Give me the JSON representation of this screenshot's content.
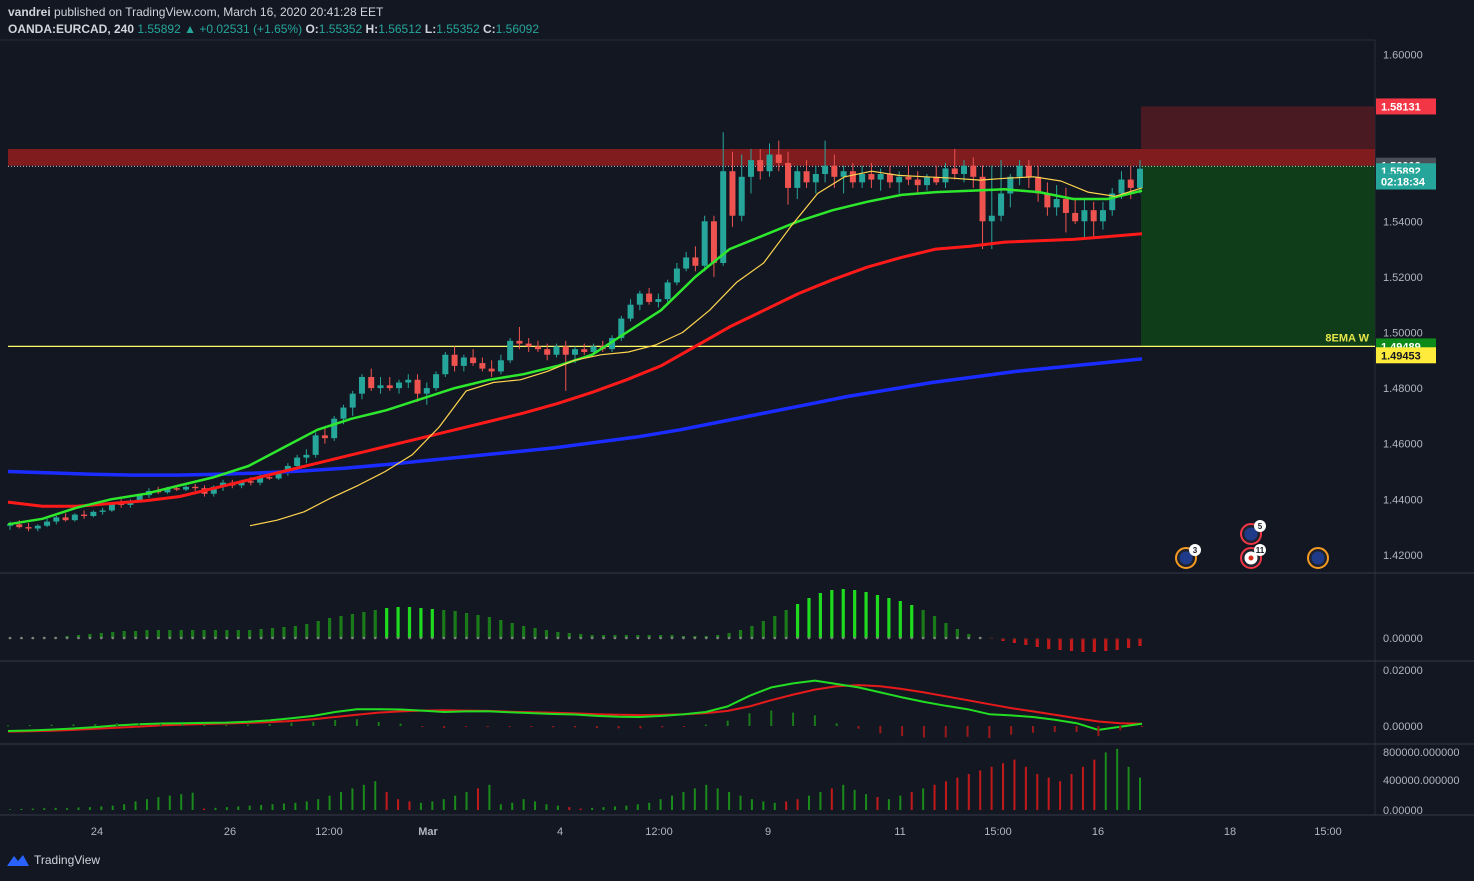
{
  "header": {
    "author": "vandrei",
    "published": "published on TradingView.com, March 16, 2020 20:41:28 EET",
    "symbol": "OANDA:EURCAD, 240",
    "last": "1.55892",
    "change_arrow": "▲",
    "change": "+0.02531 (+1.65%)",
    "o_label": "O:",
    "o": "1.55352",
    "h_label": "H:",
    "h": "1.56512",
    "l_label": "L:",
    "l": "1.55352",
    "c_label": "C:",
    "c": "1.56092"
  },
  "footer": {
    "brand": "TradingView",
    "icon": "tradingview-logo-icon"
  },
  "colors": {
    "background": "#131722",
    "up": "#26a69a",
    "down": "#ef5350",
    "ema_fast": "#ffd54f",
    "ema_mid": "#2ee82e",
    "ema_slow": "#ff1a1a",
    "ema_long": "#1a2cff",
    "level_line": "#ffff66",
    "resistance_zone": "#a51d1d",
    "stop_zone": "#4a1a22",
    "target_zone": "#0f3d1a"
  },
  "chart_data": {
    "type": "candlestick",
    "price_axis": {
      "ylim": [
        1.4135,
        1.6052
      ],
      "ticks": [
        "1.60000",
        "1.58000",
        "1.56000",
        "1.54000",
        "1.52000",
        "1.50000",
        "1.48000",
        "1.46000",
        "1.44000",
        "1.42000"
      ]
    },
    "time_axis": {
      "ticks": [
        "24",
        "26",
        "12:00",
        "Mar",
        "4",
        "12:00",
        "9",
        "11",
        "15:00",
        "16",
        "18",
        "15:00"
      ]
    },
    "price_labels": [
      {
        "text": "1.58131",
        "color": "#f23645"
      },
      {
        "text": "1.56002",
        "color": "#4a4e57"
      },
      {
        "text": "1.55892",
        "color": "#26a69a"
      },
      {
        "text": "02:18:34",
        "color": "#26a69a"
      },
      {
        "text": "1.49489",
        "color": "#0d8a1a"
      },
      {
        "text": "1.49453",
        "color": "#ffeb3b"
      }
    ],
    "annotations": [
      {
        "text": "8EMA W",
        "value": 1.495
      }
    ],
    "levels": {
      "horizontal_line": 1.495,
      "resistance_zone": [
        1.56,
        1.566
      ],
      "stop_zone": [
        1.566,
        1.5813
      ],
      "target_zone": [
        1.495,
        1.56
      ]
    },
    "candles": [
      [
        1.4305,
        1.432,
        1.429,
        1.431
      ],
      [
        1.431,
        1.4325,
        1.4295,
        1.43
      ],
      [
        1.43,
        1.4315,
        1.4285,
        1.4295
      ],
      [
        1.4295,
        1.431,
        1.4285,
        1.4305
      ],
      [
        1.4305,
        1.433,
        1.43,
        1.432
      ],
      [
        1.432,
        1.434,
        1.431,
        1.4335
      ],
      [
        1.4335,
        1.435,
        1.432,
        1.4325
      ],
      [
        1.4325,
        1.435,
        1.432,
        1.4345
      ],
      [
        1.4345,
        1.436,
        1.433,
        1.434
      ],
      [
        1.434,
        1.436,
        1.4335,
        1.4355
      ],
      [
        1.4355,
        1.437,
        1.4345,
        1.436
      ],
      [
        1.436,
        1.439,
        1.4355,
        1.4385
      ],
      [
        1.4385,
        1.44,
        1.437,
        1.438
      ],
      [
        1.438,
        1.44,
        1.437,
        1.4395
      ],
      [
        1.4395,
        1.442,
        1.439,
        1.4415
      ],
      [
        1.4415,
        1.444,
        1.4405,
        1.443
      ],
      [
        1.443,
        1.4445,
        1.442,
        1.4425
      ],
      [
        1.4425,
        1.4445,
        1.442,
        1.444
      ],
      [
        1.444,
        1.445,
        1.443,
        1.4435
      ],
      [
        1.4435,
        1.445,
        1.443,
        1.4445
      ],
      [
        1.4445,
        1.4455,
        1.443,
        1.444
      ],
      [
        1.444,
        1.445,
        1.441,
        1.442
      ],
      [
        1.442,
        1.445,
        1.441,
        1.4445
      ],
      [
        1.4445,
        1.447,
        1.443,
        1.446
      ],
      [
        1.446,
        1.447,
        1.444,
        1.445
      ],
      [
        1.445,
        1.447,
        1.444,
        1.4465
      ],
      [
        1.4465,
        1.448,
        1.445,
        1.446
      ],
      [
        1.446,
        1.449,
        1.445,
        1.448
      ],
      [
        1.448,
        1.45,
        1.447,
        1.4475
      ],
      [
        1.4475,
        1.45,
        1.447,
        1.4495
      ],
      [
        1.4495,
        1.453,
        1.4485,
        1.452
      ],
      [
        1.452,
        1.456,
        1.45,
        1.455
      ],
      [
        1.455,
        1.458,
        1.453,
        1.456
      ],
      [
        1.456,
        1.464,
        1.455,
        1.463
      ],
      [
        1.463,
        1.466,
        1.46,
        1.462
      ],
      [
        1.462,
        1.47,
        1.461,
        1.469
      ],
      [
        1.469,
        1.474,
        1.467,
        1.473
      ],
      [
        1.473,
        1.479,
        1.47,
        1.478
      ],
      [
        1.478,
        1.485,
        1.476,
        1.484
      ],
      [
        1.484,
        1.487,
        1.479,
        1.48
      ],
      [
        1.48,
        1.484,
        1.478,
        1.481
      ],
      [
        1.481,
        1.484,
        1.479,
        1.48
      ],
      [
        1.48,
        1.483,
        1.478,
        1.482
      ],
      [
        1.482,
        1.485,
        1.48,
        1.483
      ],
      [
        1.483,
        1.485,
        1.475,
        1.478
      ],
      [
        1.478,
        1.482,
        1.474,
        1.48
      ],
      [
        1.48,
        1.486,
        1.479,
        1.485
      ],
      [
        1.485,
        1.493,
        1.484,
        1.492
      ],
      [
        1.492,
        1.495,
        1.486,
        1.488
      ],
      [
        1.488,
        1.492,
        1.486,
        1.491
      ],
      [
        1.491,
        1.494,
        1.488,
        1.489
      ],
      [
        1.489,
        1.491,
        1.486,
        1.487
      ],
      [
        1.487,
        1.49,
        1.484,
        1.486
      ],
      [
        1.486,
        1.492,
        1.485,
        1.49
      ],
      [
        1.49,
        1.498,
        1.489,
        1.497
      ],
      [
        1.497,
        1.502,
        1.494,
        1.496
      ],
      [
        1.496,
        1.498,
        1.493,
        1.495
      ],
      [
        1.495,
        1.497,
        1.493,
        1.494
      ],
      [
        1.494,
        1.496,
        1.49,
        1.492
      ],
      [
        1.492,
        1.496,
        1.491,
        1.495
      ],
      [
        1.495,
        1.497,
        1.479,
        1.492
      ],
      [
        1.492,
        1.495,
        1.489,
        1.494
      ],
      [
        1.494,
        1.496,
        1.492,
        1.493
      ],
      [
        1.493,
        1.496,
        1.492,
        1.495
      ],
      [
        1.495,
        1.497,
        1.493,
        1.494
      ],
      [
        1.494,
        1.499,
        1.493,
        1.498
      ],
      [
        1.498,
        1.506,
        1.497,
        1.505
      ],
      [
        1.505,
        1.512,
        1.504,
        1.51
      ],
      [
        1.51,
        1.515,
        1.508,
        1.514
      ],
      [
        1.514,
        1.516,
        1.51,
        1.511
      ],
      [
        1.511,
        1.514,
        1.509,
        1.512
      ],
      [
        1.512,
        1.519,
        1.511,
        1.518
      ],
      [
        1.518,
        1.525,
        1.517,
        1.523
      ],
      [
        1.523,
        1.529,
        1.522,
        1.527
      ],
      [
        1.527,
        1.531,
        1.522,
        1.524
      ],
      [
        1.524,
        1.542,
        1.522,
        1.54
      ],
      [
        1.54,
        1.542,
        1.52,
        1.525
      ],
      [
        1.525,
        1.572,
        1.524,
        1.558
      ],
      [
        1.558,
        1.565,
        1.538,
        1.542
      ],
      [
        1.542,
        1.564,
        1.54,
        1.556
      ],
      [
        1.556,
        1.566,
        1.55,
        1.562
      ],
      [
        1.562,
        1.566,
        1.555,
        1.558
      ],
      [
        1.558,
        1.568,
        1.556,
        1.564
      ],
      [
        1.564,
        1.569,
        1.558,
        1.561
      ],
      [
        1.561,
        1.565,
        1.546,
        1.552
      ],
      [
        1.552,
        1.56,
        1.548,
        1.558
      ],
      [
        1.558,
        1.562,
        1.552,
        1.554
      ],
      [
        1.554,
        1.56,
        1.55,
        1.557
      ],
      [
        1.557,
        1.569,
        1.554,
        1.56
      ],
      [
        1.56,
        1.564,
        1.552,
        1.556
      ],
      [
        1.556,
        1.56,
        1.55,
        1.558
      ],
      [
        1.558,
        1.561,
        1.552,
        1.554
      ],
      [
        1.554,
        1.56,
        1.552,
        1.557
      ],
      [
        1.557,
        1.561,
        1.552,
        1.555
      ],
      [
        1.555,
        1.559,
        1.551,
        1.557
      ],
      [
        1.557,
        1.56,
        1.552,
        1.554
      ],
      [
        1.554,
        1.558,
        1.55,
        1.556
      ],
      [
        1.556,
        1.56,
        1.553,
        1.555
      ],
      [
        1.555,
        1.558,
        1.55,
        1.553
      ],
      [
        1.553,
        1.557,
        1.551,
        1.556
      ],
      [
        1.556,
        1.56,
        1.553,
        1.554
      ],
      [
        1.554,
        1.561,
        1.552,
        1.559
      ],
      [
        1.559,
        1.566,
        1.555,
        1.557
      ],
      [
        1.557,
        1.562,
        1.554,
        1.56
      ],
      [
        1.56,
        1.563,
        1.552,
        1.556
      ],
      [
        1.556,
        1.56,
        1.53,
        1.54
      ],
      [
        1.54,
        1.56,
        1.53,
        1.542
      ],
      [
        1.542,
        1.562,
        1.54,
        1.55
      ],
      [
        1.55,
        1.557,
        1.545,
        1.556
      ],
      [
        1.556,
        1.562,
        1.553,
        1.56
      ],
      [
        1.56,
        1.562,
        1.552,
        1.556
      ],
      [
        1.556,
        1.56,
        1.547,
        1.55
      ],
      [
        1.55,
        1.554,
        1.542,
        1.545
      ],
      [
        1.545,
        1.553,
        1.542,
        1.548
      ],
      [
        1.548,
        1.552,
        1.536,
        1.543
      ],
      [
        1.543,
        1.548,
        1.539,
        1.54
      ],
      [
        1.54,
        1.548,
        1.534,
        1.544
      ],
      [
        1.544,
        1.547,
        1.534,
        1.54
      ],
      [
        1.54,
        1.547,
        1.537,
        1.544
      ],
      [
        1.544,
        1.552,
        1.542,
        1.55
      ],
      [
        1.55,
        1.558,
        1.548,
        1.555
      ],
      [
        1.555,
        1.56,
        1.548,
        1.552
      ],
      [
        1.552,
        1.562,
        1.55,
        1.5589
      ]
    ],
    "ema_fast": [
      [
        1.4305,
        1.4325,
        1.4355,
        1.4405,
        1.445,
        1.45,
        1.456,
        1.466,
        1.479,
        1.482,
        1.483,
        1.486,
        1.49,
        1.492,
        1.493,
        1.4955,
        1.5,
        1.508,
        1.518,
        1.525,
        1.538,
        1.55,
        1.556,
        1.558,
        1.5565,
        1.556,
        1.5555,
        1.5548,
        1.5555,
        1.556,
        1.5545,
        1.5505,
        1.549,
        1.552
      ]
    ],
    "ema_20": [
      [
        1.431,
        1.433,
        1.437,
        1.44,
        1.442,
        1.445,
        1.448,
        1.452,
        1.4585,
        1.465,
        1.469,
        1.472,
        1.476,
        1.48,
        1.483,
        1.485,
        1.488,
        1.492,
        1.5,
        1.508,
        1.52,
        1.53,
        1.535,
        1.54,
        1.544,
        1.547,
        1.5495,
        1.5505,
        1.551,
        1.5515,
        1.5505,
        1.548,
        1.548,
        1.551
      ]
    ],
    "ema_50": [
      [
        1.439,
        1.4375,
        1.4375,
        1.4385,
        1.4395,
        1.441,
        1.444,
        1.447,
        1.45,
        1.453,
        1.456,
        1.459,
        1.462,
        1.465,
        1.468,
        1.471,
        1.4745,
        1.4785,
        1.483,
        1.488,
        1.495,
        1.502,
        1.508,
        1.514,
        1.519,
        1.5235,
        1.527,
        1.53,
        1.531,
        1.5325,
        1.533,
        1.5335,
        1.5345,
        1.5355
      ]
    ],
    "ema_200": [
      [
        1.45,
        1.4495,
        1.449,
        1.4487,
        1.4487,
        1.449,
        1.4495,
        1.4502,
        1.4512,
        1.4525,
        1.454,
        1.4555,
        1.457,
        1.4585,
        1.4605,
        1.4625,
        1.465,
        1.468,
        1.471,
        1.474,
        1.477,
        1.4795,
        1.482,
        1.484,
        1.486,
        1.4875,
        1.489,
        1.4905
      ]
    ],
    "momentum_pane": {
      "axis_tick": "0.00000",
      "bars": [
        0,
        0,
        0,
        1,
        1,
        2,
        3,
        4,
        5,
        6,
        7,
        7,
        8,
        8,
        8,
        8,
        8,
        8,
        8,
        8,
        8,
        8,
        9,
        10,
        11,
        12,
        14,
        17,
        20,
        22,
        24,
        26,
        28,
        30,
        31,
        31,
        30,
        29,
        28,
        27,
        25,
        23,
        21,
        18,
        15,
        12,
        10,
        8,
        6,
        5,
        4,
        3,
        3,
        3,
        3,
        3,
        3,
        3,
        3,
        2,
        2,
        2,
        3,
        5,
        8,
        12,
        17,
        22,
        28,
        34,
        40,
        45,
        48,
        49,
        48,
        46,
        43,
        40,
        37,
        33,
        28,
        22,
        15,
        9,
        4,
        1,
        -1,
        -3,
        -5,
        -7,
        -9,
        -11,
        -12,
        -13,
        -14,
        -14,
        -13,
        -12,
        -10,
        -8
      ]
    },
    "macd_pane": {
      "axis_ticks": [
        "0.02000",
        "0.00000"
      ],
      "macd": [
        -0.0018,
        -0.0016,
        -0.0013,
        -0.0009,
        -0.0004,
        0.0002,
        0.0006,
        0.0009,
        0.001,
        0.0011,
        0.0012,
        0.0015,
        0.002,
        0.0028,
        0.0036,
        0.005,
        0.006,
        0.006,
        0.0059,
        0.0055,
        0.005,
        0.0052,
        0.0053,
        0.0049,
        0.0046,
        0.0043,
        0.0041,
        0.0036,
        0.0033,
        0.0032,
        0.0036,
        0.0042,
        0.005,
        0.007,
        0.0108,
        0.0138,
        0.0152,
        0.0162,
        0.015,
        0.0138,
        0.012,
        0.0102,
        0.0086,
        0.0072,
        0.006,
        0.0042,
        0.0038,
        0.0032,
        0.0022,
        0.001,
        -0.0014,
        -0.0003,
        0.0008
      ],
      "signal": [
        -0.002,
        -0.0019,
        -0.0017,
        -0.0014,
        -0.001,
        -0.0006,
        -0.0002,
        0.0002,
        0.0005,
        0.0007,
        0.0009,
        0.0011,
        0.0014,
        0.0018,
        0.0024,
        0.0032,
        0.004,
        0.0048,
        0.0052,
        0.0055,
        0.0056,
        0.0055,
        0.0054,
        0.0051,
        0.0049,
        0.0047,
        0.0045,
        0.0042,
        0.004,
        0.0039,
        0.004,
        0.0042,
        0.0046,
        0.0054,
        0.007,
        0.0092,
        0.0112,
        0.013,
        0.0142,
        0.0146,
        0.0142,
        0.0132,
        0.012,
        0.0106,
        0.0092,
        0.0078,
        0.0064,
        0.0052,
        0.004,
        0.0028,
        0.0016,
        0.001,
        0.0008
      ]
    },
    "volume_pane": {
      "axis_ticks": [
        "800000.000000",
        "400000.000000",
        "0.00000"
      ],
      "volume_color_codes": "gggggggggggggggggrgggggggggggggggrrrgggggrgggggggrrgggggggggggggggggrrggrgggrggrgrrrrrrrrrrrrrrrgggg",
      "volume": [
        10,
        15,
        20,
        25,
        30,
        25,
        35,
        40,
        50,
        60,
        80,
        120,
        150,
        180,
        200,
        220,
        240,
        20,
        30,
        40,
        50,
        60,
        70,
        80,
        90,
        100,
        120,
        150,
        200,
        250,
        300,
        350,
        400,
        250,
        150,
        120,
        100,
        120,
        150,
        200,
        250,
        300,
        350,
        80,
        100,
        150,
        120,
        80,
        60,
        40,
        20,
        30,
        40,
        50,
        60,
        80,
        100,
        150,
        200,
        250,
        300,
        350,
        300,
        250,
        200,
        150,
        120,
        100,
        120,
        150,
        200,
        250,
        300,
        350,
        280,
        220,
        180,
        150,
        200,
        250,
        300,
        350,
        400,
        450,
        500,
        550,
        600,
        650,
        700,
        600,
        500,
        450,
        400,
        500,
        600,
        700,
        800,
        850,
        600,
        450
      ]
    },
    "event_markers": [
      {
        "label": "3",
        "color": "#f59a23",
        "icon": "eu-flag-icon"
      },
      {
        "label": "5",
        "color": "#f23645",
        "icon": "eu-flag-icon"
      },
      {
        "label": "11",
        "color": "#f23645",
        "icon": "canada-flag-icon"
      },
      {
        "label": "",
        "color": "#f59a23",
        "icon": "eu-flag-icon"
      }
    ]
  }
}
